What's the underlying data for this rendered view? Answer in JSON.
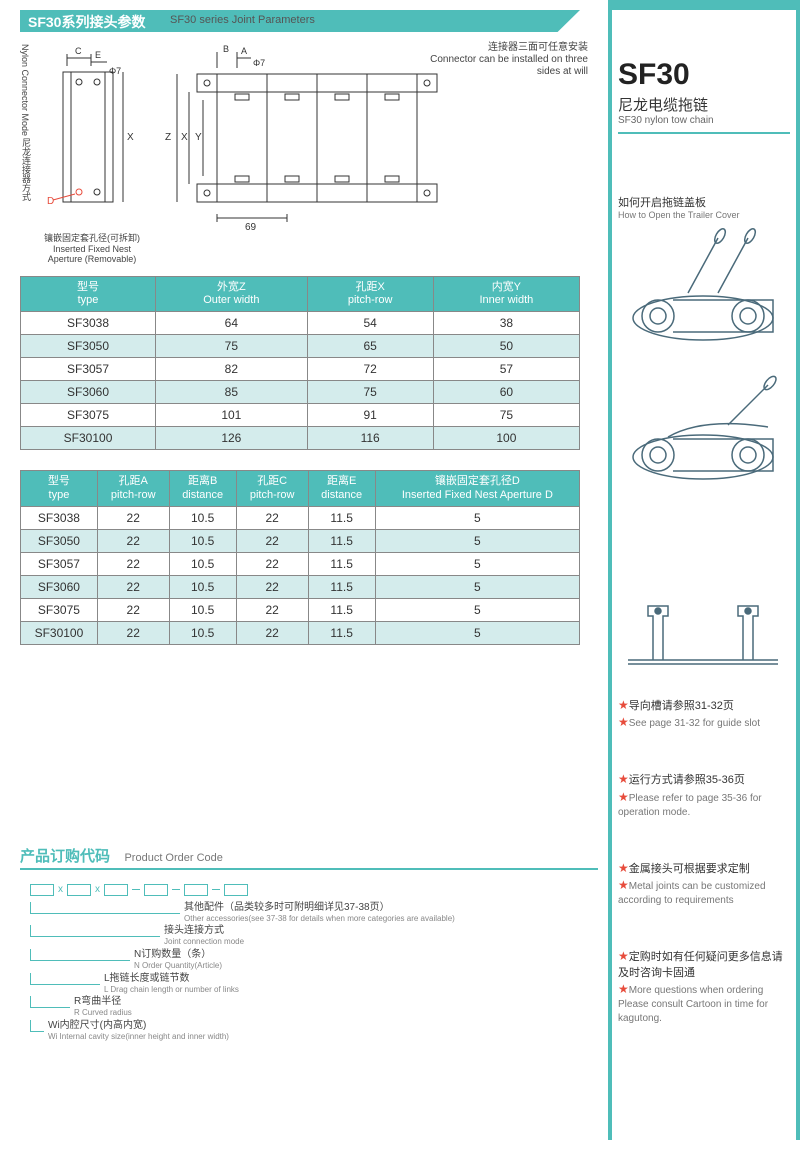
{
  "colors": {
    "accent": "#4fbdb9",
    "star": "#e74c3c",
    "text": "#333",
    "muted": "#777",
    "border": "#888"
  },
  "header": {
    "title_cn": "SF30系列接头参数",
    "title_en": "SF30 series Joint Parameters"
  },
  "diagram": {
    "left_vert_cn": "尼龙连接器方式",
    "left_vert_en": "Nylon Connector Mode",
    "d1_labels": {
      "C": "C",
      "E": "E",
      "phi": "Φ7",
      "X": "X",
      "D": "D"
    },
    "d1_caption_cn": "镶嵌固定套孔径(可拆卸)",
    "d1_caption_en": "Inserted Fixed Nest Aperture (Removable)",
    "d2_labels": {
      "B": "B",
      "A": "A",
      "phi": "Φ7",
      "Z": "Z",
      "X": "X",
      "Y": "Y",
      "dim": "69"
    },
    "top_note_cn": "连接器三面可任意安装",
    "top_note_en": "Connector can be installed on three sides at will"
  },
  "table1": {
    "columns": [
      {
        "cn": "型号",
        "en": "type"
      },
      {
        "cn": "外宽Z",
        "en": "Outer width"
      },
      {
        "cn": "孔距X",
        "en": "pitch-row"
      },
      {
        "cn": "内宽Y",
        "en": "Inner width"
      }
    ],
    "rows": [
      [
        "SF3038",
        "64",
        "54",
        "38"
      ],
      [
        "SF3050",
        "75",
        "65",
        "50"
      ],
      [
        "SF3057",
        "82",
        "72",
        "57"
      ],
      [
        "SF3060",
        "85",
        "75",
        "60"
      ],
      [
        "SF3075",
        "101",
        "91",
        "75"
      ],
      [
        "SF30100",
        "126",
        "116",
        "100"
      ]
    ],
    "alt_rows": [
      1,
      3,
      5
    ]
  },
  "table2": {
    "columns": [
      {
        "cn": "型号",
        "en": "type"
      },
      {
        "cn": "孔距A",
        "en": "pitch-row"
      },
      {
        "cn": "距离B",
        "en": "distance"
      },
      {
        "cn": "孔距C",
        "en": "pitch-row"
      },
      {
        "cn": "距离E",
        "en": "distance"
      },
      {
        "cn": "镶嵌固定套孔径D",
        "en": "Inserted Fixed Nest Aperture D"
      }
    ],
    "rows": [
      [
        "SF3038",
        "22",
        "10.5",
        "22",
        "11.5",
        "5"
      ],
      [
        "SF3050",
        "22",
        "10.5",
        "22",
        "11.5",
        "5"
      ],
      [
        "SF3057",
        "22",
        "10.5",
        "22",
        "11.5",
        "5"
      ],
      [
        "SF3060",
        "22",
        "10.5",
        "22",
        "11.5",
        "5"
      ],
      [
        "SF3075",
        "22",
        "10.5",
        "22",
        "11.5",
        "5"
      ],
      [
        "SF30100",
        "22",
        "10.5",
        "22",
        "11.5",
        "5"
      ]
    ],
    "alt_rows": [
      1,
      3,
      5
    ]
  },
  "order": {
    "title_cn": "产品订购代码",
    "title_en": "Product Order Code",
    "lines": [
      {
        "indent": 150,
        "cn": "其他配件（品类较多时可附明细详见37-38页）",
        "en": "Other accessories(see 37-38 for details when more categories are available)"
      },
      {
        "indent": 130,
        "cn": "接头连接方式",
        "en": "Joint connection mode"
      },
      {
        "indent": 100,
        "cn": "N订购数量（条）",
        "en": "N Order Quantity(Article)"
      },
      {
        "indent": 70,
        "cn": "L拖链长度或链节数",
        "en": "L Drag chain length or number of links"
      },
      {
        "indent": 40,
        "cn": "R弯曲半径",
        "en": "R Curved radius"
      },
      {
        "indent": 14,
        "cn": "Wi内腔尺寸(内高内宽)",
        "en": "Wi Internal cavity size(inner height and inner width)"
      }
    ]
  },
  "sidebar": {
    "code": "SF30",
    "name_cn": "尼龙电缆拖链",
    "name_en": "SF30 nylon tow chain",
    "howto_cn": "如何开启拖链盖板",
    "howto_en": "How to Open the Trailer Cover",
    "notes": [
      {
        "cn": "导向槽请参照31-32页",
        "en": "See page 31-32 for guide slot"
      },
      {
        "cn": "运行方式请参照35-36页",
        "en": "Please refer to page 35-36 for operation mode."
      },
      {
        "cn": "金属接头可根据要求定制",
        "en": "Metal joints can be customized according to requirements"
      },
      {
        "cn": "定购时如有任何疑问更多信息请及时咨询卡固通",
        "en": "More questions when ordering Please consult Cartoon in time for kagutong."
      }
    ]
  }
}
